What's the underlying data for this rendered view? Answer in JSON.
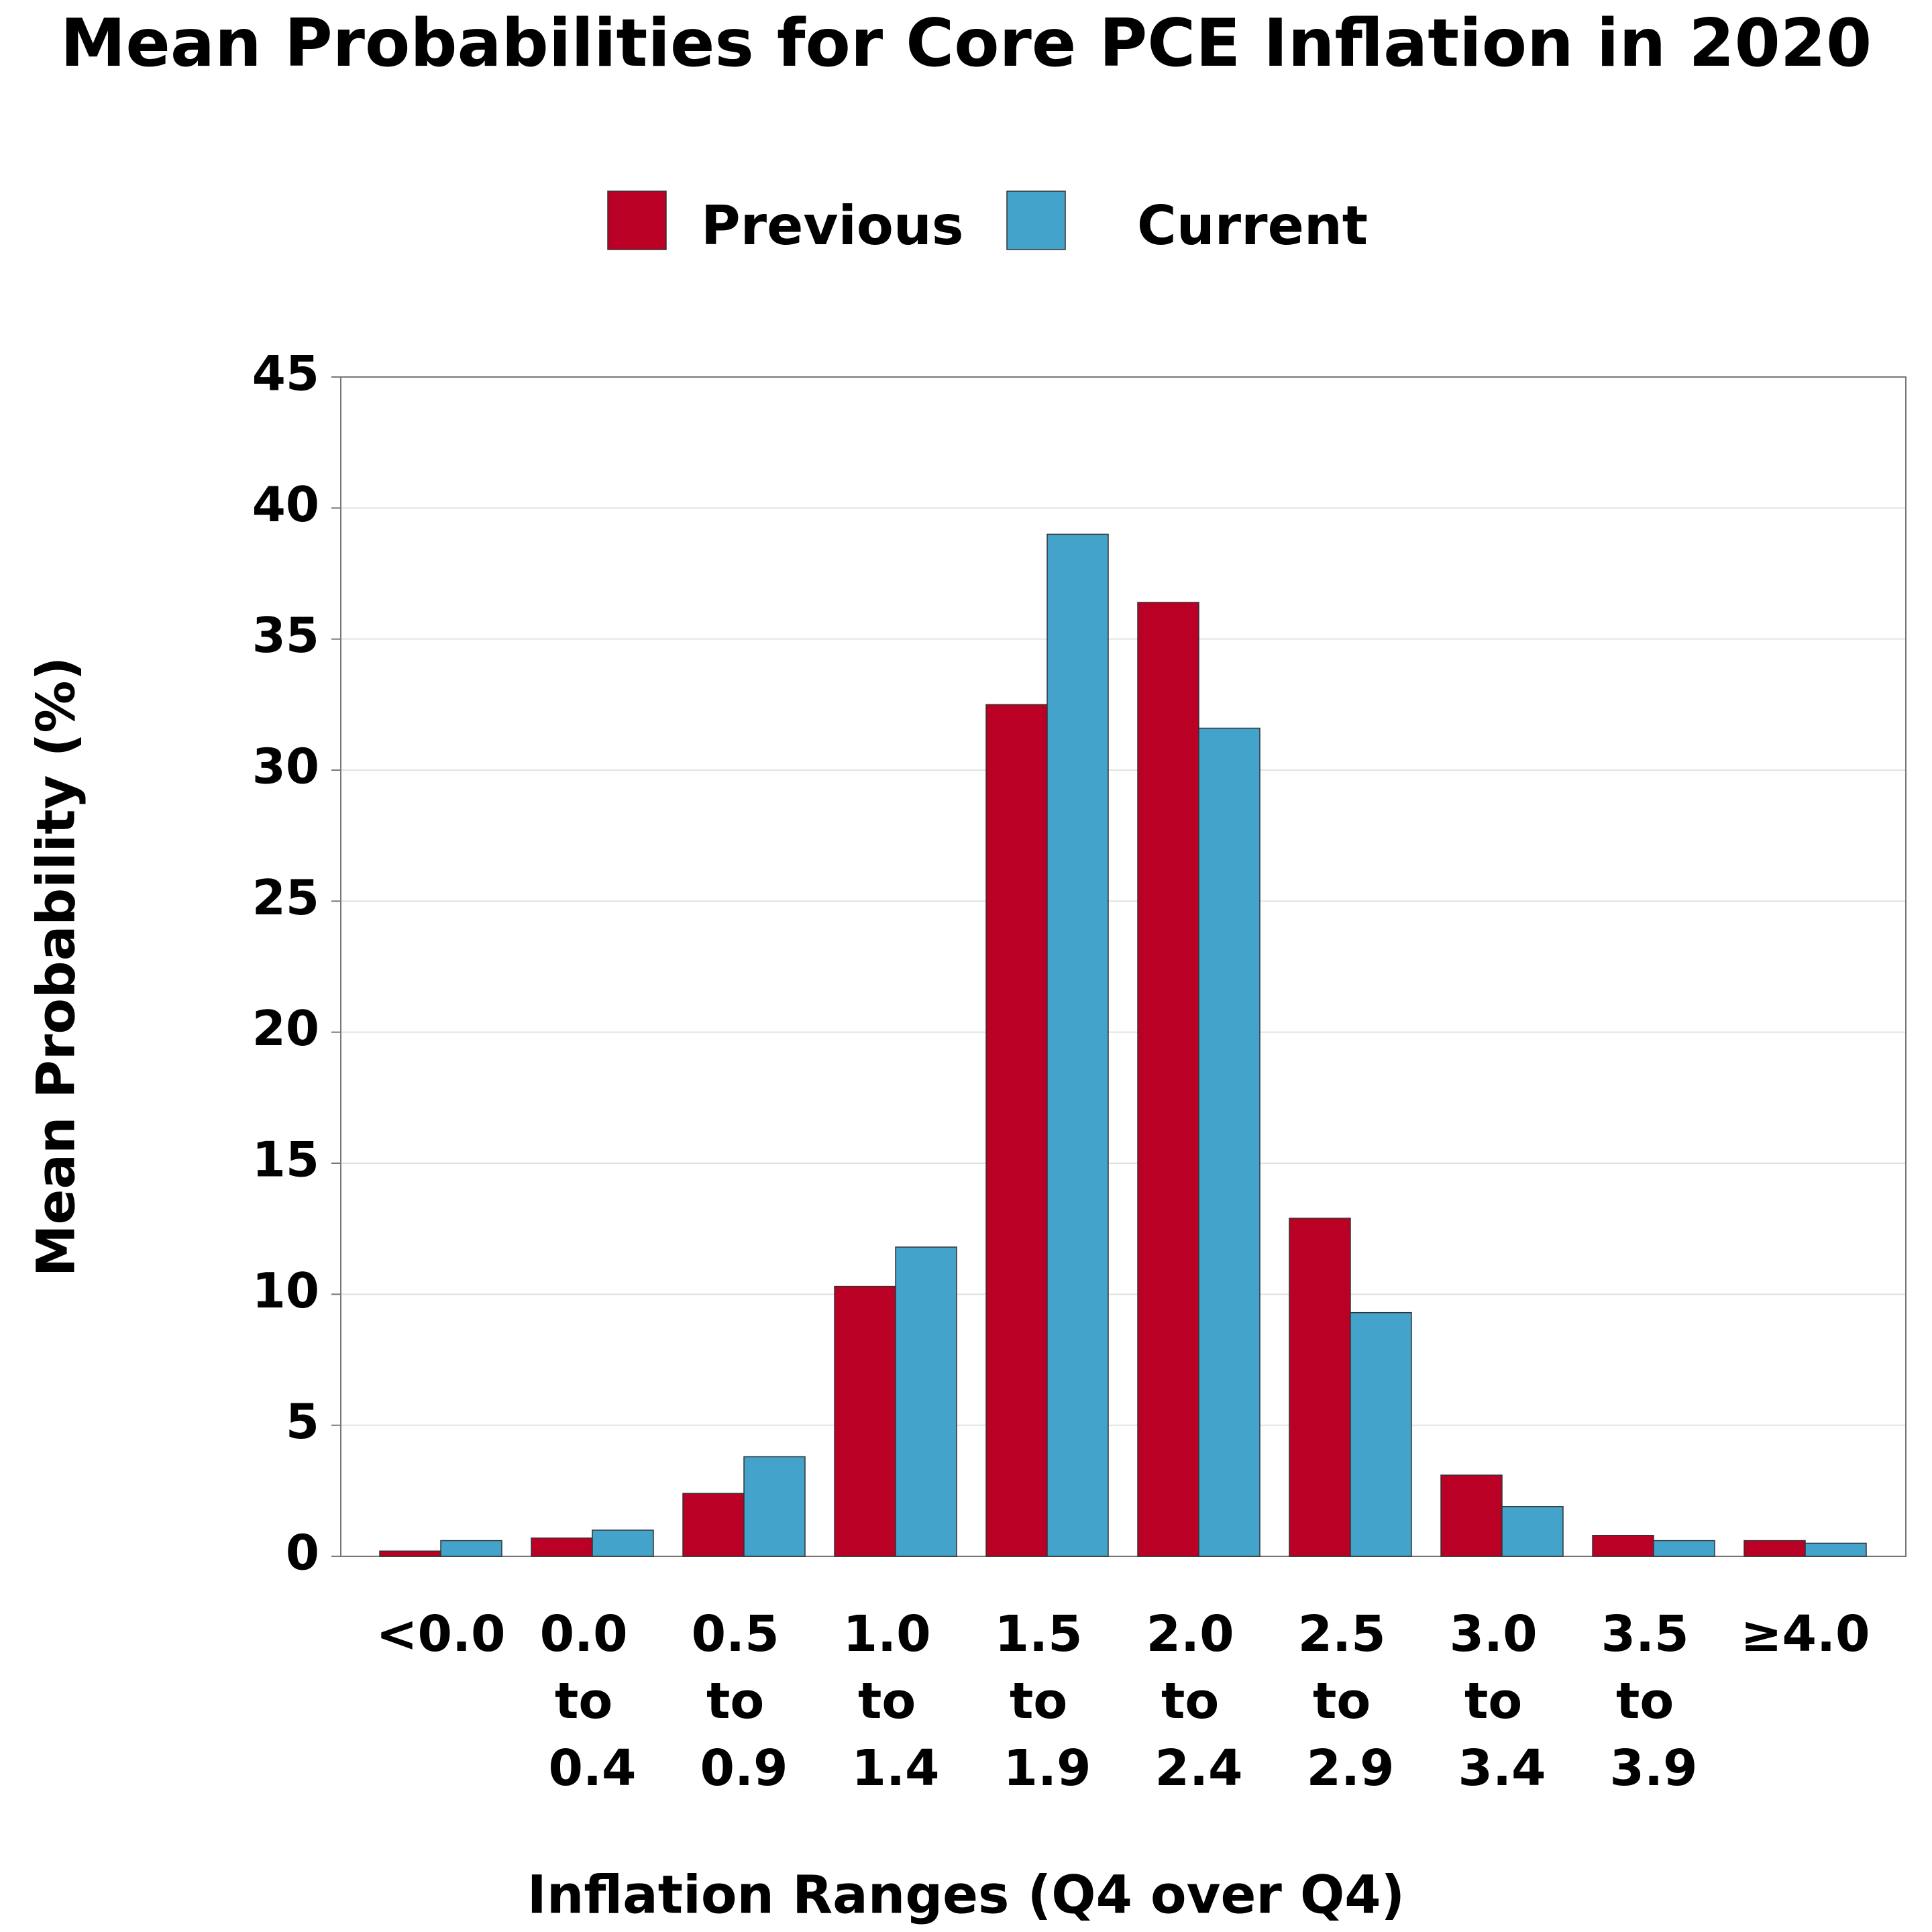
{
  "chart_data": {
    "type": "bar",
    "title": "Mean Probabilities for Core PCE Inflation in 2020",
    "x_label": "Inflation Ranges (Q4 over Q4)",
    "y_label": "Mean Probability (%)",
    "categories": [
      "<0.0",
      "0.0 to 0.4",
      "0.5 to 0.9",
      "1.0 to 1.4",
      "1.5 to 1.9",
      "2.0 to 2.4",
      "2.5 to 2.9",
      "3.0 to 3.4",
      "3.5 to 3.9",
      "≥4.0"
    ],
    "series": [
      {
        "name": "Previous",
        "color": "#bb0026",
        "values": [
          0.2,
          0.7,
          2.4,
          10.3,
          32.5,
          36.4,
          12.9,
          3.1,
          0.8,
          0.6
        ]
      },
      {
        "name": "Current",
        "color": "#44a3cb",
        "values": [
          0.6,
          1.0,
          3.8,
          11.8,
          39.0,
          31.6,
          9.3,
          1.9,
          0.6,
          0.5
        ]
      }
    ],
    "ylim": [
      0,
      45
    ],
    "yticks": [
      0,
      5,
      10,
      15,
      20,
      25,
      30,
      35,
      40,
      45
    ],
    "grid": true
  }
}
